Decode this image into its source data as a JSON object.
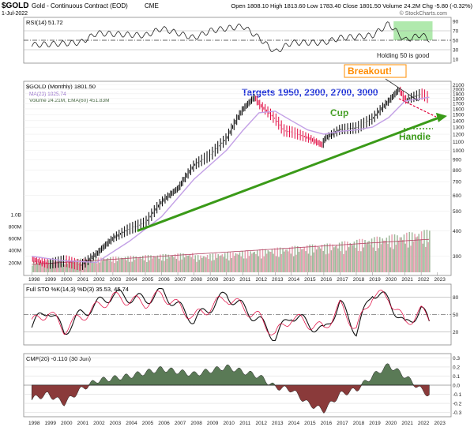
{
  "header": {
    "symbol": "$GOLD",
    "description": "Gold - Continuous Contract (EOD)",
    "exchange": "CME",
    "date": "1-Jul-2022",
    "quote_line": "Open 1808.10 High 1813.60 Low 1783.40 Close 1801.50 Volume 24.2M Chg -5.80 (-0.32%)",
    "copyright": "© StockCharts.com"
  },
  "panels": {
    "rsi": {
      "label": "RSI(14) 51.72",
      "ticks": [
        "90",
        "70",
        "50",
        "30",
        "10"
      ],
      "note": "Holding 50 is good"
    },
    "price": {
      "legend": [
        "$GOLD (Monthly) 1801.50",
        "MA(23) 1825.74",
        "Volume 24.21M, EMA(60) 451.83M"
      ],
      "ticks": [
        "2100",
        "2000",
        "1900",
        "1800",
        "1700",
        "1600",
        "1500",
        "1400",
        "1300",
        "1200",
        "1100",
        "1000",
        "900",
        "800",
        "700",
        "600",
        "500",
        "400",
        "300"
      ],
      "volume_ticks": [
        "1.0B",
        "800M",
        "600M",
        "400M",
        "200M"
      ],
      "annotations": {
        "breakout": "Breakout!",
        "targets": "Targets 1950, 2300, 2700, 3000",
        "cup": "Cup",
        "handle": "Handle"
      }
    },
    "sto": {
      "label": "Full STO %K(14,3) %D(3) 35.53, 45.74",
      "ticks": [
        "80",
        "50",
        "20"
      ]
    },
    "cmf": {
      "label": "CMF(20) -0.110 (30 Jun)",
      "ticks": [
        "0.3",
        "0.2",
        "0.1",
        "0.0",
        "-0.1",
        "-0.2",
        "-0.3"
      ]
    }
  },
  "years": [
    "1998",
    "1999",
    "2000",
    "2001",
    "2002",
    "2003",
    "2004",
    "2005",
    "2006",
    "2007",
    "2008",
    "2009",
    "2010",
    "2011",
    "2012",
    "2013",
    "2014",
    "2015",
    "2016",
    "2017",
    "2018",
    "2019",
    "2020",
    "2021",
    "2022",
    "2023"
  ],
  "colors": {
    "up_bar": "#000000",
    "down_bar": "#e0003a",
    "ma": "#c3a0e6",
    "trendline": "#3a9a18",
    "rsi_zone": "#8fe08a",
    "volume_up": "#9fb89a",
    "volume_down": "#e6a0b0",
    "cmf_positive": "#5a7a56",
    "cmf_negative": "#8a3a3a",
    "targets_text": "#1c2fd6",
    "breakout_text": "#ff8c00"
  },
  "chart_data": [
    {
      "type": "line",
      "title": "Gold - Continuous Contract (EOD) monthly",
      "ylabel": "",
      "ylim": [
        250,
        2150
      ],
      "log_scale": true,
      "series": [
        {
          "name": "$GOLD (Monthly)",
          "x": [
            1998,
            1999,
            2000,
            2001,
            2002,
            2003,
            2004,
            2005,
            2006,
            2007,
            2008,
            2009,
            2010,
            2011,
            2011.7,
            2012,
            2013,
            2013.5,
            2014,
            2015,
            2015.9,
            2016,
            2017,
            2018,
            2019,
            2020,
            2020.6,
            2021,
            2022,
            2022.5
          ],
          "values": [
            290,
            275,
            285,
            270,
            310,
            370,
            410,
            440,
            560,
            650,
            850,
            950,
            1150,
            1600,
            1830,
            1680,
            1420,
            1250,
            1230,
            1150,
            1060,
            1140,
            1270,
            1290,
            1440,
            1760,
            2000,
            1770,
            1900,
            1801.5
          ]
        },
        {
          "name": "MA(23)",
          "x": [
            1998,
            2000,
            2002,
            2004,
            2006,
            2008,
            2010,
            2011,
            2012,
            2013,
            2014,
            2015,
            2016,
            2017,
            2018,
            2019,
            2020,
            2021,
            2022.5
          ],
          "values": [
            300,
            285,
            280,
            355,
            470,
            720,
            1000,
            1250,
            1530,
            1560,
            1400,
            1260,
            1200,
            1240,
            1260,
            1300,
            1450,
            1750,
            1825.74
          ]
        }
      ],
      "trendline": {
        "x": [
          2004.5,
          2023.5
        ],
        "values": [
          400,
          1450
        ]
      }
    },
    {
      "type": "line",
      "title": "RSI(14)",
      "ylim": [
        0,
        100
      ],
      "series": [
        {
          "name": "RSI(14)",
          "x": [
            1998,
            2001,
            2002,
            2005,
            2006,
            2008,
            2009,
            2011,
            2012,
            2013,
            2014,
            2016,
            2017,
            2019,
            2020,
            2021,
            2022,
            2022.5
          ],
          "values": [
            40,
            45,
            65,
            60,
            75,
            55,
            70,
            80,
            55,
            25,
            45,
            45,
            55,
            60,
            85,
            50,
            62,
            51.72
          ]
        }
      ]
    },
    {
      "type": "line",
      "title": "Full STO %K(14,3) %D(3)",
      "ylim": [
        0,
        100
      ],
      "series": [
        {
          "name": "%K",
          "x": [
            1998,
            1999,
            2000,
            2001,
            2003,
            2005,
            2006,
            2008,
            2010,
            2012,
            2013,
            2014,
            2016,
            2017,
            2018,
            2019,
            2020,
            2021,
            2022,
            2022.5
          ],
          "values": [
            30,
            60,
            20,
            50,
            85,
            75,
            90,
            40,
            85,
            40,
            10,
            50,
            20,
            70,
            20,
            90,
            75,
            30,
            60,
            35.53
          ]
        },
        {
          "name": "%D",
          "x": [
            1998,
            1999,
            2000,
            2001,
            2003,
            2005,
            2006,
            2008,
            2010,
            2012,
            2013,
            2014,
            2016,
            2017,
            2018,
            2019,
            2020,
            2021,
            2022,
            2022.5
          ],
          "values": [
            35,
            55,
            25,
            45,
            80,
            70,
            85,
            45,
            80,
            45,
            15,
            45,
            25,
            65,
            25,
            85,
            80,
            35,
            55,
            45.74
          ]
        }
      ]
    },
    {
      "type": "area",
      "title": "CMF(20)",
      "ylim": [
        -0.3,
        0.3
      ],
      "series": [
        {
          "name": "CMF(20)",
          "x": [
            1998,
            1999,
            2000,
            2001,
            2002,
            2004,
            2006,
            2008,
            2010,
            2011,
            2012,
            2013,
            2014,
            2015,
            2016,
            2017,
            2018,
            2019,
            2020,
            2021,
            2022,
            2022.5
          ],
          "values": [
            -0.15,
            -0.1,
            -0.2,
            -0.05,
            0.05,
            0.1,
            0.18,
            0.12,
            0.2,
            0.15,
            0.1,
            -0.02,
            -0.05,
            -0.2,
            -0.28,
            -0.1,
            -0.05,
            0.1,
            0.22,
            0.1,
            -0.05,
            -0.11
          ]
        }
      ]
    }
  ]
}
